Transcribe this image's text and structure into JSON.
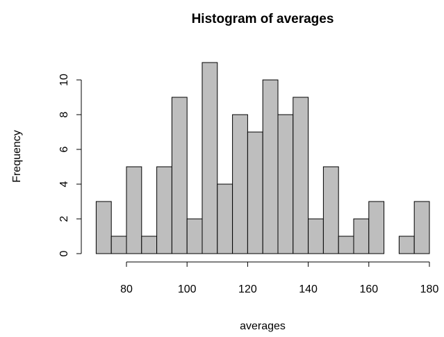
{
  "chart_data": {
    "type": "histogram",
    "title": "Histogram of averages",
    "x_label": "averages",
    "y_label": "Frequency",
    "bins": [
      70,
      75,
      80,
      85,
      90,
      95,
      100,
      105,
      110,
      115,
      120,
      125,
      130,
      135,
      140,
      145,
      150,
      155,
      160,
      165,
      170,
      175,
      180
    ],
    "counts": [
      3,
      1,
      5,
      1,
      5,
      9,
      2,
      11,
      4,
      8,
      7,
      10,
      8,
      9,
      2,
      5,
      1,
      2,
      3,
      0,
      1,
      3
    ],
    "color": "#bebebe",
    "xlim": [
      70,
      180
    ],
    "xticks": [
      80,
      100,
      120,
      140,
      160,
      180
    ],
    "ylim": [
      0,
      10
    ],
    "yticks": [
      0,
      2,
      4,
      6,
      8,
      10
    ]
  }
}
